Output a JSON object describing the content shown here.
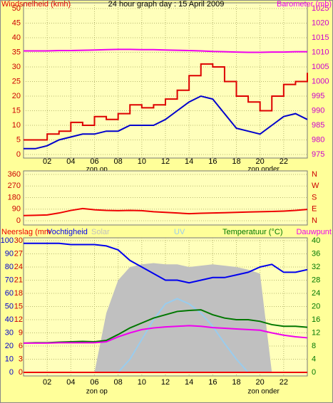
{
  "chart_data": [
    {
      "type": "line",
      "title": "24 hour graph day : 15 April 2009",
      "x": [
        0,
        1,
        2,
        3,
        4,
        5,
        6,
        7,
        8,
        9,
        10,
        11,
        12,
        13,
        14,
        15,
        16,
        17,
        18,
        19,
        20,
        21,
        22,
        23,
        24
      ],
      "xlim": [
        0,
        24
      ],
      "xticks": [
        {
          "value": 2,
          "label": "02"
        },
        {
          "value": 4,
          "label": "04"
        },
        {
          "value": 6,
          "label": "06"
        },
        {
          "value": 8,
          "label": "08"
        },
        {
          "value": 10,
          "label": "10"
        },
        {
          "value": 12,
          "label": "12"
        },
        {
          "value": 14,
          "label": "14"
        },
        {
          "value": 16,
          "label": "16"
        },
        {
          "value": 18,
          "label": "18"
        },
        {
          "value": 20,
          "label": "20"
        },
        {
          "value": 22,
          "label": "22"
        }
      ],
      "ylim": [
        0,
        50
      ],
      "yticks": [
        0,
        5,
        10,
        15,
        20,
        25,
        30,
        35,
        40,
        45,
        50
      ],
      "ytick_color": "#cc0000",
      "y2lim": [
        975,
        1025
      ],
      "y2ticks": [
        975,
        980,
        985,
        990,
        995,
        1000,
        1005,
        1010,
        1015,
        1020,
        1025
      ],
      "y2tick_color": "#cc00cc",
      "grid": true,
      "annotations": [
        {
          "text": "zon op",
          "x": 6.2
        },
        {
          "text": "zon onder",
          "x": 20.3
        }
      ],
      "series": [
        {
          "name": "Windsnelheid (kmh)",
          "color": "#dd0000",
          "style": "step",
          "axis": "y",
          "values": [
            5,
            5,
            7,
            8,
            11,
            10,
            13,
            12,
            14,
            17,
            16,
            17,
            19,
            22,
            27,
            31,
            30,
            25,
            20,
            18,
            15,
            20,
            24,
            25,
            28
          ]
        },
        {
          "color": "#0000cc",
          "style": "line",
          "axis": "y",
          "values": [
            2,
            2,
            3,
            5,
            6,
            7,
            7,
            8,
            8,
            10,
            10,
            10,
            12,
            15,
            18,
            20,
            19,
            14,
            9,
            8,
            7,
            10,
            13,
            14,
            12
          ]
        },
        {
          "name": "Barometer (mb)",
          "color": "#ee00ee",
          "style": "line",
          "axis": "y2",
          "values": [
            1010.5,
            1010.5,
            1010.5,
            1010.6,
            1010.6,
            1010.7,
            1010.8,
            1010.9,
            1011,
            1011,
            1010.9,
            1010.9,
            1010.8,
            1010.7,
            1010.6,
            1010.5,
            1010.3,
            1010.2,
            1010.1,
            1010,
            1010,
            1010.1,
            1010.1,
            1010.2,
            1010.2
          ]
        }
      ]
    },
    {
      "type": "line",
      "x": [
        0,
        1,
        2,
        3,
        4,
        5,
        6,
        7,
        8,
        9,
        10,
        11,
        12,
        13,
        14,
        15,
        16,
        17,
        18,
        19,
        20,
        21,
        22,
        23,
        24
      ],
      "xlim": [
        0,
        24
      ],
      "ylim": [
        0,
        360
      ],
      "yticks": [
        0,
        90,
        180,
        270,
        360
      ],
      "ytick_color": "#cc0000",
      "y2lim": [
        0,
        360
      ],
      "y2ticks": [
        {
          "value": 0,
          "label": "N"
        },
        {
          "value": 90,
          "label": "E"
        },
        {
          "value": 180,
          "label": "S"
        },
        {
          "value": 270,
          "label": "W"
        },
        {
          "value": 360,
          "label": "N"
        }
      ],
      "y2tick_color": "#cc0000",
      "grid": true,
      "series": [
        {
          "color": "#ee0000",
          "style": "line",
          "axis": "y",
          "values": [
            40,
            42,
            45,
            60,
            80,
            95,
            85,
            80,
            78,
            80,
            78,
            70,
            65,
            60,
            55,
            58,
            60,
            62,
            65,
            68,
            70,
            72,
            75,
            80,
            88
          ]
        }
      ]
    },
    {
      "type": "line",
      "x": [
        0,
        1,
        2,
        3,
        4,
        5,
        6,
        7,
        8,
        9,
        10,
        11,
        12,
        13,
        14,
        15,
        16,
        17,
        18,
        19,
        20,
        21,
        22,
        23,
        24
      ],
      "xlim": [
        0,
        24
      ],
      "xticks": [
        {
          "value": 2,
          "label": "02"
        },
        {
          "value": 4,
          "label": "04"
        },
        {
          "value": 6,
          "label": "06"
        },
        {
          "value": 8,
          "label": "08"
        },
        {
          "value": 10,
          "label": "10"
        },
        {
          "value": 12,
          "label": "12"
        },
        {
          "value": 14,
          "label": "14"
        },
        {
          "value": 16,
          "label": "16"
        },
        {
          "value": 18,
          "label": "18"
        },
        {
          "value": 20,
          "label": "20"
        },
        {
          "value": 22,
          "label": "22"
        }
      ],
      "ylim": [
        0,
        100
      ],
      "yticks": [
        0,
        10,
        20,
        30,
        40,
        50,
        60,
        70,
        80,
        90,
        100
      ],
      "ytick_color": "#0000cc",
      "y3lim": [
        0,
        30
      ],
      "y3ticks": [
        0,
        3,
        6,
        9,
        12,
        15,
        18,
        21,
        24,
        27,
        30
      ],
      "y3tick_color": "#cc0000",
      "y2lim": [
        0,
        40
      ],
      "y2ticks": [
        0,
        4,
        8,
        12,
        16,
        20,
        24,
        28,
        32,
        36,
        40
      ],
      "y2tick_color": "#007700",
      "grid": true,
      "annotations": [
        {
          "text": "zon op",
          "x": 6.2
        },
        {
          "text": "zon onder",
          "x": 20.3
        }
      ],
      "series": [
        {
          "name": "Solar",
          "color": "#c0c0c0",
          "style": "area",
          "axis": "y",
          "values": [
            0,
            0,
            0,
            0,
            0,
            0,
            0,
            45,
            70,
            80,
            82,
            83,
            82,
            82,
            80,
            81,
            82,
            81,
            80,
            78,
            75,
            0,
            0,
            0,
            0
          ]
        },
        {
          "name": "UV",
          "color": "#99ccee",
          "style": "line",
          "axis": "y",
          "values": [
            0,
            0,
            0,
            0,
            0,
            0,
            0,
            0,
            0,
            10,
            25,
            40,
            52,
            56,
            52,
            45,
            35,
            22,
            10,
            0,
            0,
            0,
            0,
            0,
            0
          ]
        },
        {
          "name": "Vochtigheid",
          "color": "#0000ee",
          "style": "line",
          "axis": "y",
          "values": [
            98,
            98,
            98,
            98,
            97,
            97,
            97,
            96,
            93,
            85,
            80,
            75,
            70,
            70,
            68,
            70,
            72,
            72,
            74,
            76,
            80,
            82,
            76,
            76,
            78
          ]
        },
        {
          "name": "Temperatuur (°C)",
          "color": "#007700",
          "style": "line",
          "axis": "y2",
          "values": [
            8.9,
            9,
            9,
            9.2,
            9.3,
            9.4,
            9.3,
            9.7,
            11.5,
            13.5,
            15,
            16.5,
            17.5,
            18.5,
            18.8,
            19,
            17.5,
            16.5,
            16,
            16,
            15.5,
            14.5,
            14,
            14,
            13.7
          ]
        },
        {
          "name": "Dauwpunt",
          "color": "#ee00ee",
          "style": "line",
          "axis": "y2",
          "values": [
            8.9,
            8.9,
            8.9,
            9,
            9,
            9,
            9,
            9.3,
            10.8,
            12,
            13,
            13.5,
            13.8,
            14,
            14.2,
            14,
            13.6,
            13.4,
            13.2,
            13,
            12.8,
            12,
            11.3,
            10.8,
            10.5
          ]
        },
        {
          "name": "Neerslag (mm",
          "color": "#ee0000",
          "style": "line",
          "axis": "y3",
          "values": [
            0,
            0,
            0,
            0,
            0,
            0,
            0,
            0,
            0,
            0,
            0,
            0,
            0,
            0,
            0,
            0,
            0,
            0,
            0,
            0,
            0,
            0,
            0,
            0,
            0
          ]
        }
      ]
    }
  ]
}
